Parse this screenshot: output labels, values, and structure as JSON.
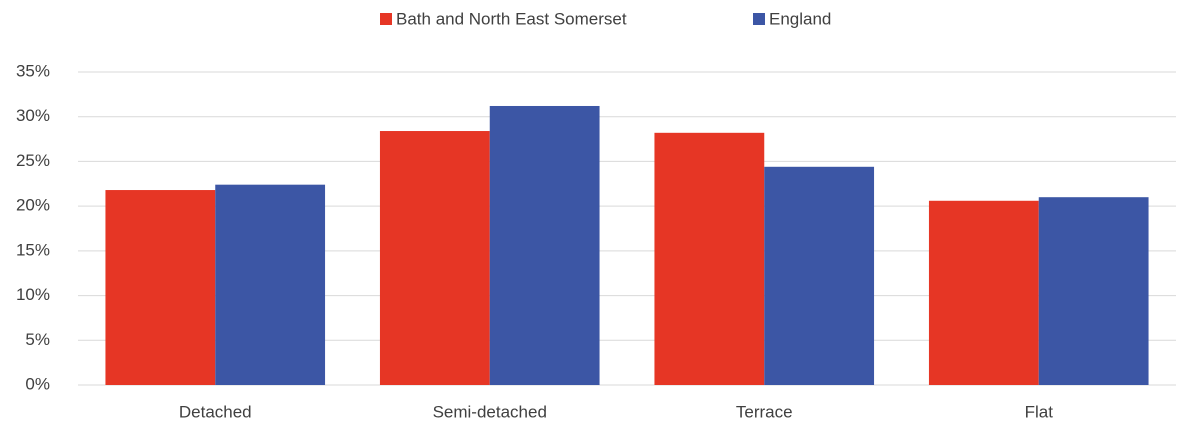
{
  "chart_data": {
    "type": "bar",
    "categories": [
      "Detached",
      "Semi-detached",
      "Terrace",
      "Flat"
    ],
    "series": [
      {
        "name": "Bath and North East Somerset",
        "color": "#e63625",
        "values": [
          21.8,
          28.4,
          28.2,
          20.6
        ]
      },
      {
        "name": "England",
        "color": "#3c56a5",
        "values": [
          22.4,
          31.2,
          24.4,
          21.0
        ]
      }
    ],
    "ylim": [
      0,
      35
    ],
    "yticks": [
      {
        "value": 0,
        "label": "0%"
      },
      {
        "value": 5,
        "label": "5%"
      },
      {
        "value": 10,
        "label": "10%"
      },
      {
        "value": 15,
        "label": "15%"
      },
      {
        "value": 20,
        "label": "20%"
      },
      {
        "value": 25,
        "label": "25%"
      },
      {
        "value": 30,
        "label": "30%"
      },
      {
        "value": 35,
        "label": "35%"
      }
    ],
    "grid": true,
    "legend": "top"
  }
}
